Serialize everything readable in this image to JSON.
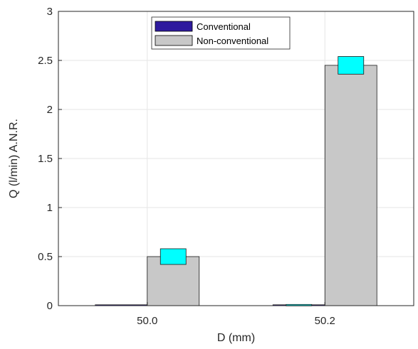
{
  "chart_data": {
    "type": "bar",
    "categories": [
      "50.0",
      "50.2"
    ],
    "xlabel": "D (mm)",
    "ylabel": "Q (l/min) A.N.R.",
    "ylim": [
      0,
      3
    ],
    "yticks": [
      "0",
      "0.5",
      "1",
      "1.5",
      "2",
      "2.5",
      "3"
    ],
    "grid": true,
    "legend_position": "top-center",
    "series": [
      {
        "name": "Conventional",
        "values": [
          0,
          0.005
        ],
        "error_halfwidth": [
          0,
          0
        ],
        "color": "#2e1a9e"
      },
      {
        "name": "Non-conventional",
        "values": [
          0.5,
          2.45
        ],
        "error_halfwidth": [
          0.08,
          0.09
        ],
        "color": "#c8c8c8"
      }
    ],
    "error_marker_color": "#00ffff"
  }
}
